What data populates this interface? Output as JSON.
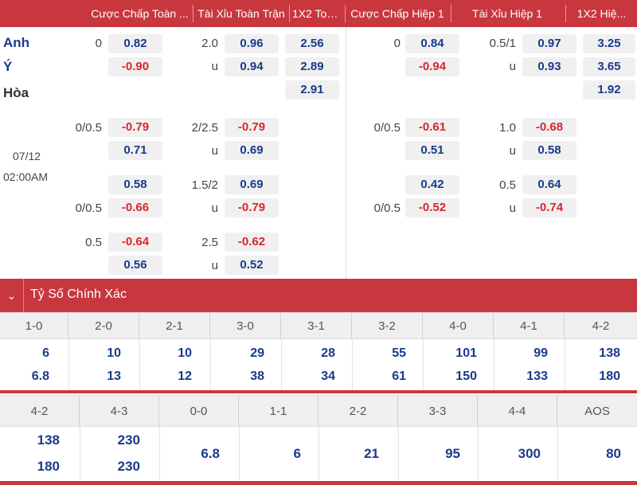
{
  "header": {
    "cols": [
      "Cược Chấp Toàn ...",
      "Tài Xỉu Toàn Trận",
      "1X2 Toà...",
      "Cược Chấp Hiệp 1",
      "Tài Xỉu Hiệp 1",
      "1X2 Hiệ..."
    ]
  },
  "teams": {
    "home": "Anh",
    "away": "Ý",
    "draw": "Hòa"
  },
  "match": {
    "date": "07/12",
    "time": "02:00AM"
  },
  "main": {
    "ft_hdp_line": "0",
    "ft_hdp_home": "0.82",
    "ft_hdp_away": "-0.90",
    "ft_ou_line": "2.0",
    "ft_ou_over": "0.96",
    "ft_ou_u": "u",
    "ft_ou_under": "0.94",
    "ft_1x2_home": "2.56",
    "ft_1x2_away": "2.89",
    "ft_1x2_draw": "2.91",
    "h1_hdp_line": "0",
    "h1_hdp_home": "0.84",
    "h1_hdp_away": "-0.94",
    "h1_ou_line": "0.5/1",
    "h1_ou_over": "0.97",
    "h1_ou_u": "u",
    "h1_ou_under": "0.93",
    "h1_1x2_home": "3.25",
    "h1_1x2_away": "3.65",
    "h1_1x2_draw": "1.92"
  },
  "alt": {
    "r1": {
      "hdp_line": "0/0.5",
      "hdp_a": "-0.79",
      "hdp_b": "0.71",
      "ou_line": "2/2.5",
      "ou_a": "-0.79",
      "ou_u": "u",
      "ou_b": "0.69",
      "h1_hdp_line": "0/0.5",
      "h1_hdp_a": "-0.61",
      "h1_hdp_b": "0.51",
      "h1_ou_line": "1.0",
      "h1_ou_a": "-0.68",
      "h1_ou_u": "u",
      "h1_ou_b": "0.58"
    },
    "r2": {
      "hdp_a": "0.58",
      "hdp_line": "0/0.5",
      "hdp_b": "-0.66",
      "ou_line": "1.5/2",
      "ou_a": "0.69",
      "ou_u": "u",
      "ou_b": "-0.79",
      "h1_hdp_a": "0.42",
      "h1_hdp_line": "0/0.5",
      "h1_hdp_b": "-0.52",
      "h1_ou_line": "0.5",
      "h1_ou_a": "0.64",
      "h1_ou_u": "u",
      "h1_ou_b": "-0.74"
    },
    "r3": {
      "hdp_line": "0.5",
      "hdp_a": "-0.64",
      "hdp_b": "0.56",
      "ou_line": "2.5",
      "ou_a": "-0.62",
      "ou_u": "u",
      "ou_b": "0.52"
    }
  },
  "correct_score": {
    "title": "Tỷ Số Chính Xác",
    "row1": [
      {
        "score": "1-0",
        "a": "6",
        "b": "6.8"
      },
      {
        "score": "2-0",
        "a": "10",
        "b": "13"
      },
      {
        "score": "2-1",
        "a": "10",
        "b": "12"
      },
      {
        "score": "3-0",
        "a": "29",
        "b": "38"
      },
      {
        "score": "3-1",
        "a": "28",
        "b": "34"
      },
      {
        "score": "3-2",
        "a": "55",
        "b": "61"
      },
      {
        "score": "4-0",
        "a": "101",
        "b": "150"
      },
      {
        "score": "4-1",
        "a": "99",
        "b": "133"
      },
      {
        "score": "4-2",
        "a": "138",
        "b": "180"
      }
    ],
    "row2": [
      {
        "score": "4-2",
        "a": "138",
        "b": "180"
      },
      {
        "score": "4-3",
        "a": "230",
        "b": "230"
      },
      {
        "score": "0-0",
        "v": "6.8"
      },
      {
        "score": "1-1",
        "v": "6"
      },
      {
        "score": "2-2",
        "v": "21"
      },
      {
        "score": "3-3",
        "v": "95"
      },
      {
        "score": "4-4",
        "v": "300"
      },
      {
        "score": "AOS",
        "v": "80"
      }
    ]
  },
  "colors": {
    "accent": "#c8373e",
    "positive": "#1a3a8a",
    "negative": "#d8262f"
  }
}
